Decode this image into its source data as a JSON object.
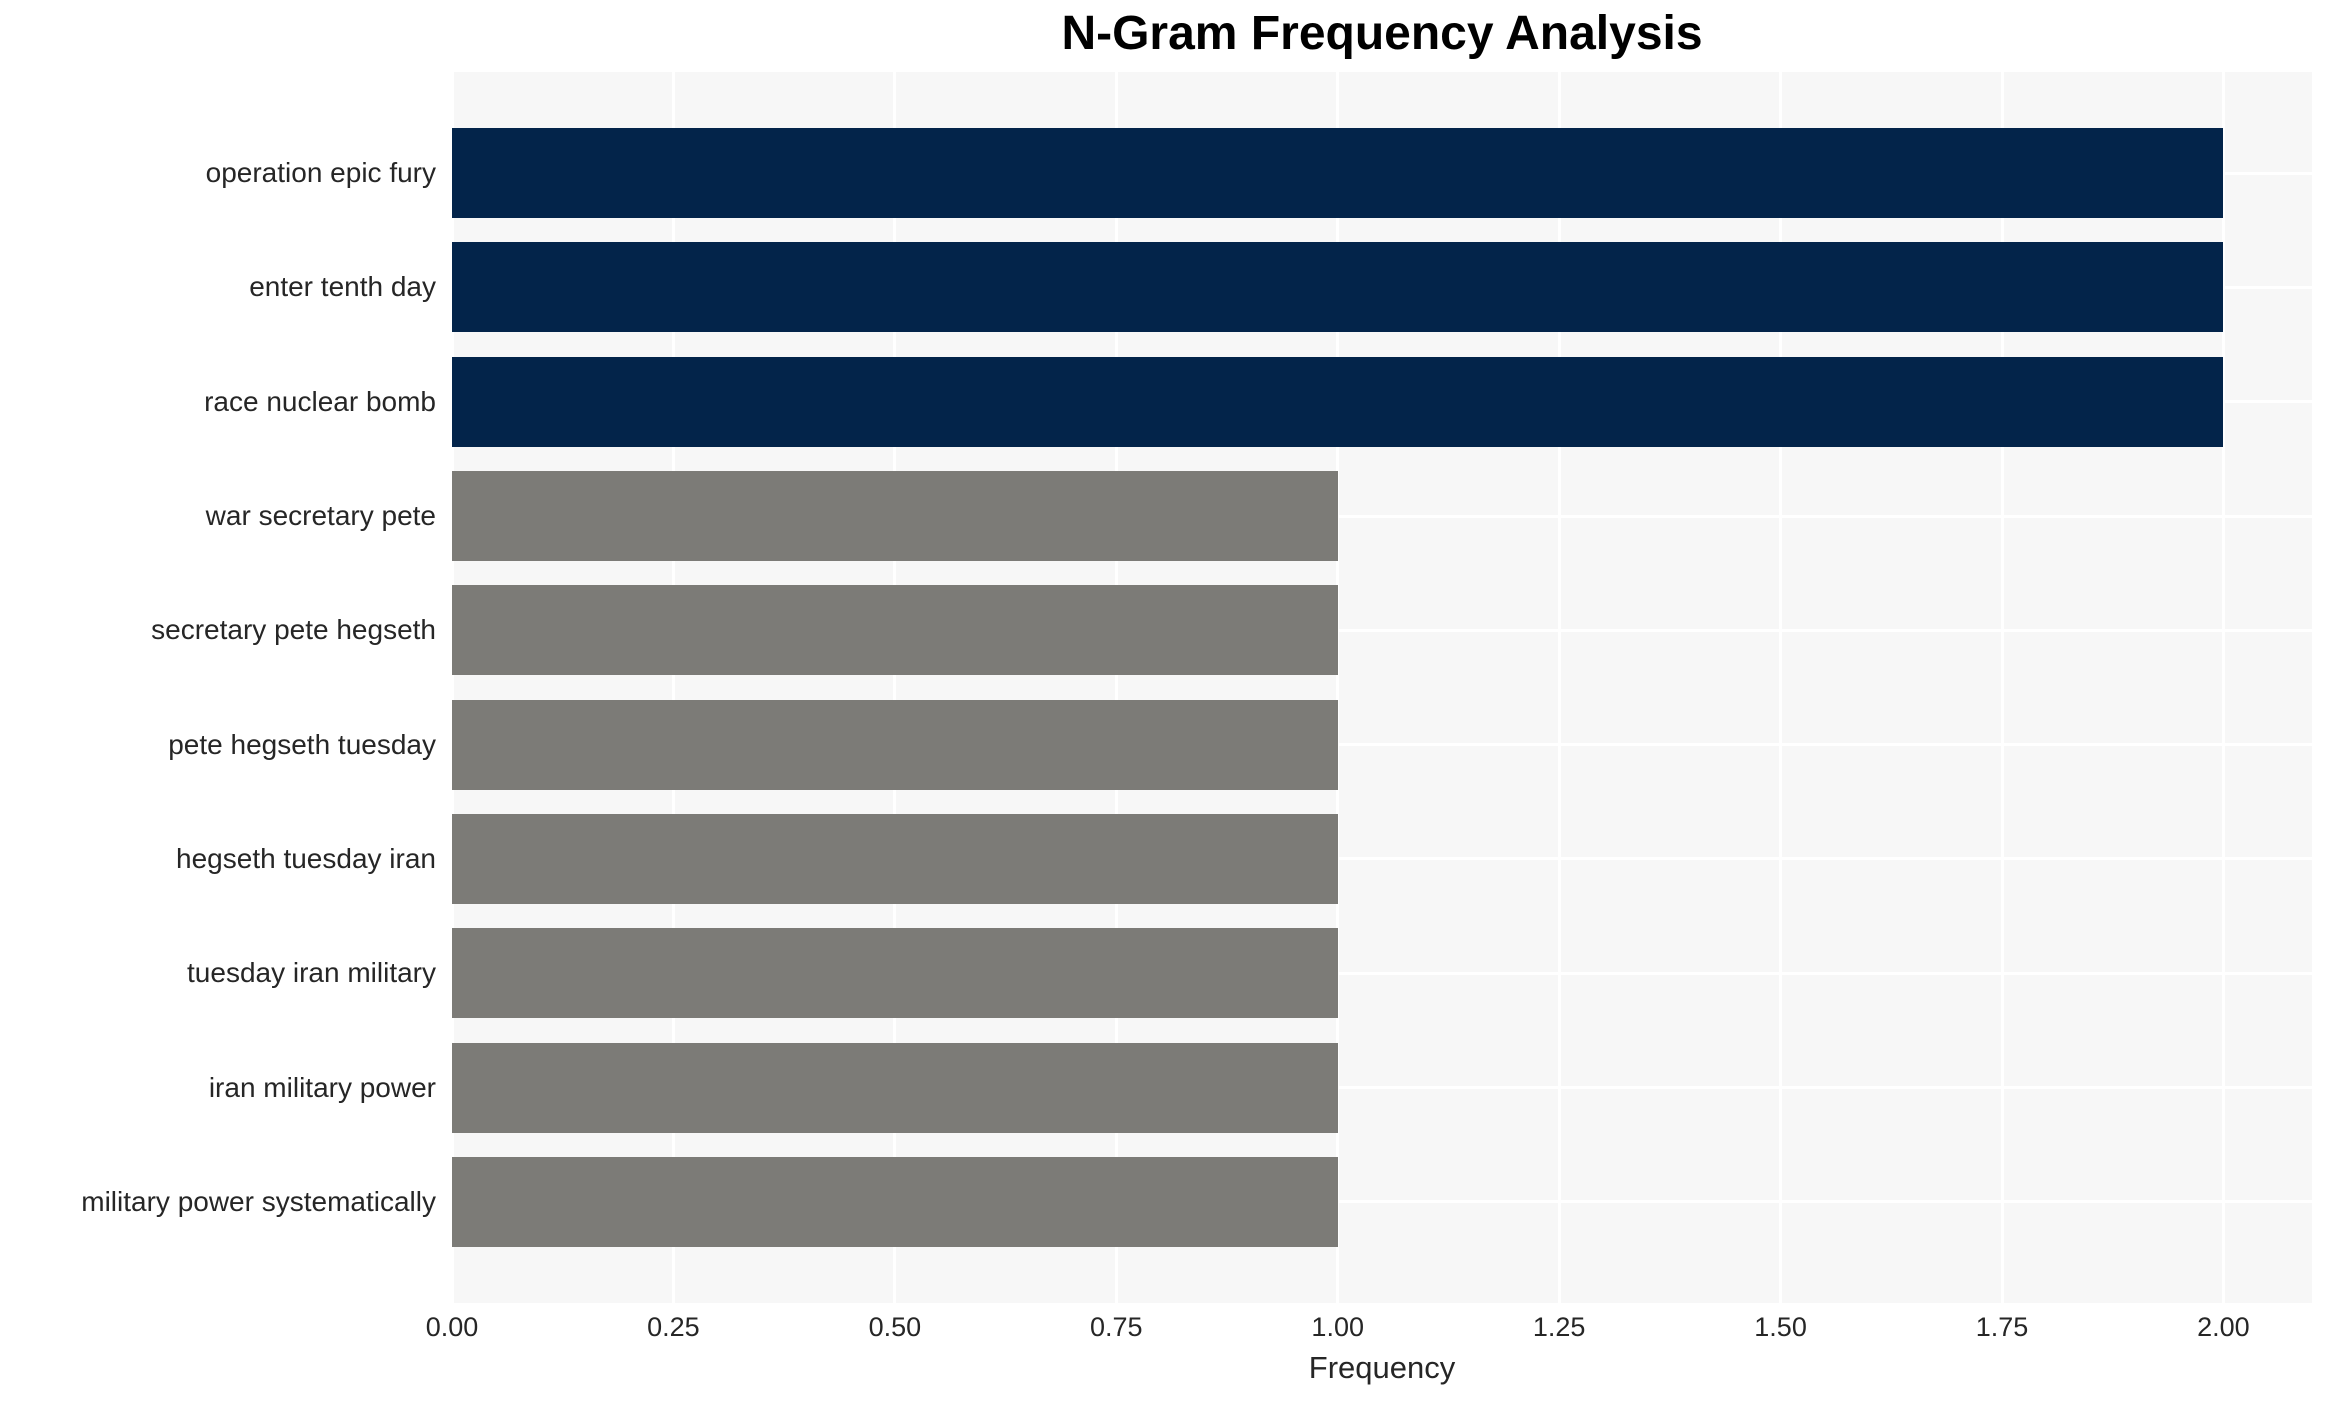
{
  "title": "N-Gram Frequency Analysis",
  "chart_data": {
    "type": "bar",
    "orientation": "horizontal",
    "title": "N-Gram Frequency Analysis",
    "xlabel": "Frequency",
    "ylabel": "",
    "categories": [
      "operation epic fury",
      "enter tenth day",
      "race nuclear bomb",
      "war secretary pete",
      "secretary pete hegseth",
      "pete hegseth tuesday",
      "hegseth tuesday iran",
      "tuesday iran military",
      "iran military power",
      "military power systematically"
    ],
    "values": [
      2,
      2,
      2,
      1,
      1,
      1,
      1,
      1,
      1,
      1
    ],
    "bar_colors": [
      "#03244a",
      "#03244a",
      "#03244a",
      "#7c7b77",
      "#7c7b77",
      "#7c7b77",
      "#7c7b77",
      "#7c7b77",
      "#7c7b77",
      "#7c7b77"
    ],
    "xlim": [
      0,
      2.1
    ],
    "xticks": [
      0.0,
      0.25,
      0.5,
      0.75,
      1.0,
      1.25,
      1.5,
      1.75,
      2.0
    ],
    "xtick_labels": [
      "0.00",
      "0.25",
      "0.50",
      "0.75",
      "1.00",
      "1.25",
      "1.50",
      "1.75",
      "2.00"
    ],
    "grid": "white gridlines on light gray panel, vertical at each x tick, horizontal at each category center",
    "legend_position": "none"
  },
  "colors": {
    "high_frequency_bar": "#03244a",
    "low_frequency_bar": "#7c7b77",
    "plot_background": "#f7f7f7",
    "figure_background": "#ffffff",
    "gridline": "#ffffff",
    "tick_text": "#262626",
    "title_text": "#000000"
  }
}
